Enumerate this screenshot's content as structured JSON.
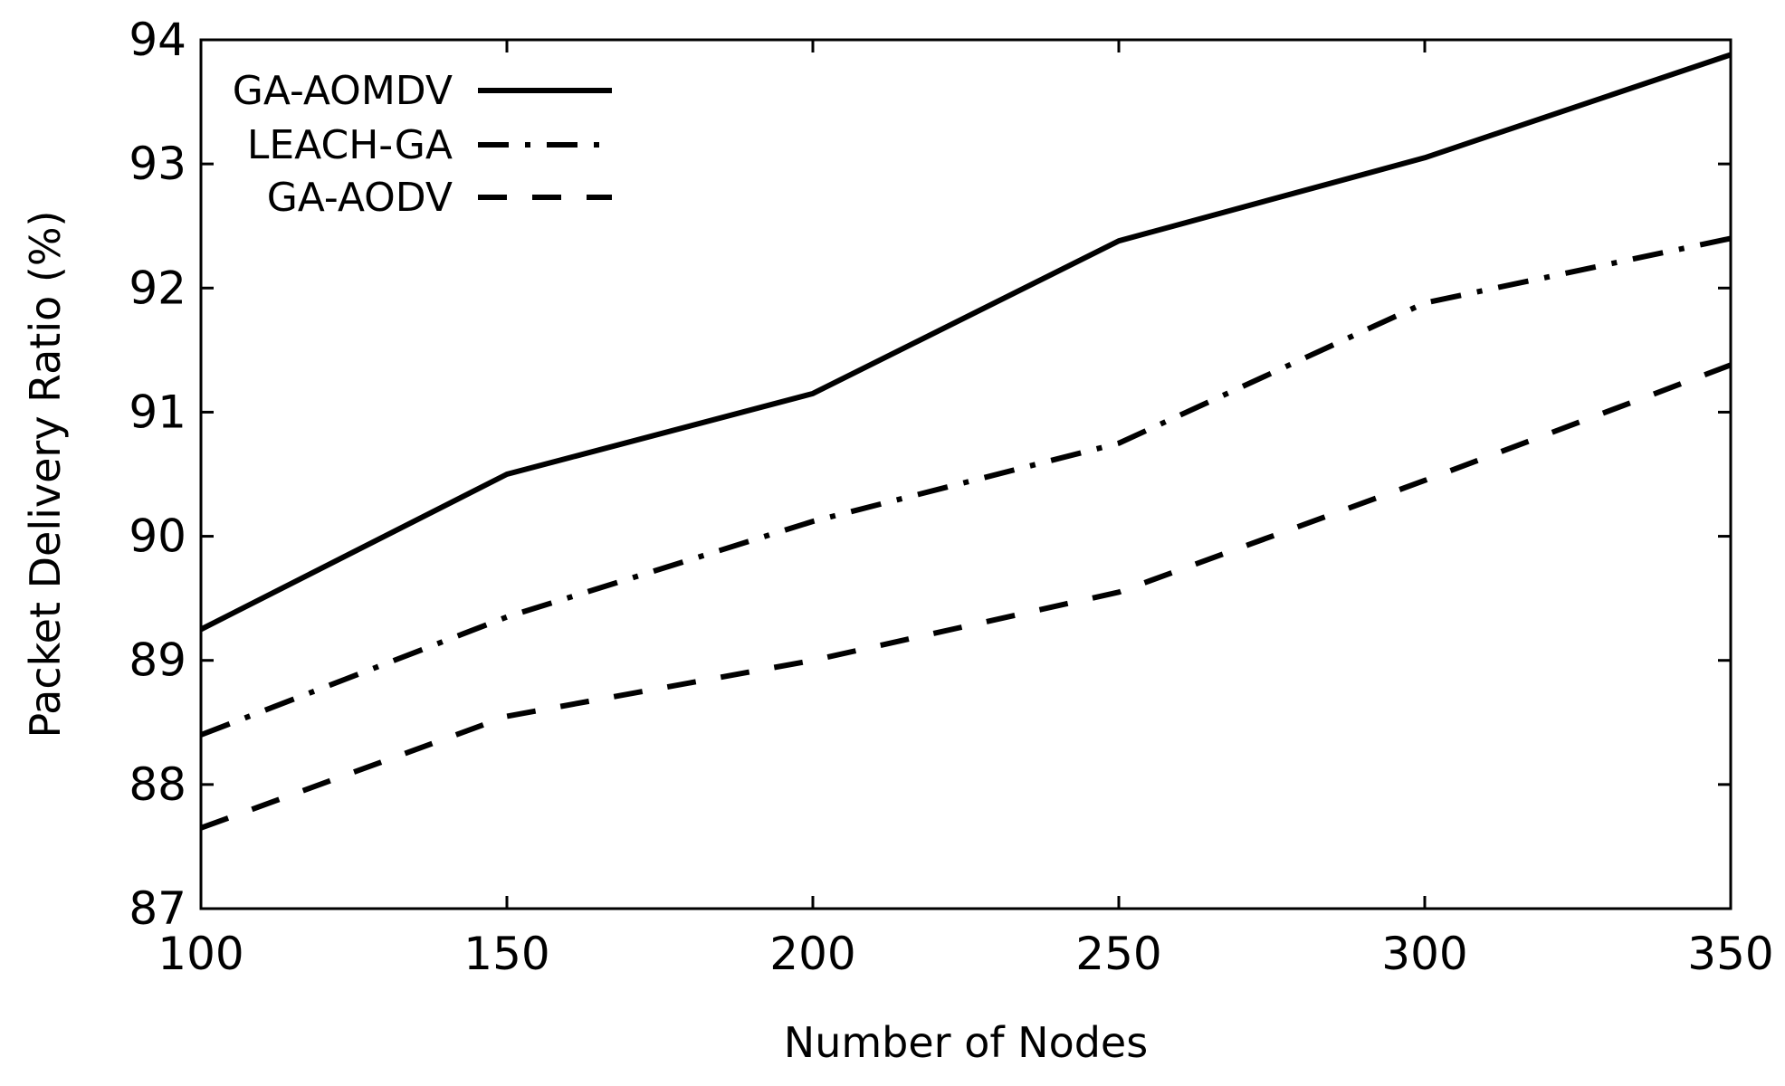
{
  "chart_data": {
    "type": "line",
    "title": "",
    "xlabel": "Number of Nodes",
    "ylabel": "Packet Delivery Ratio (%)",
    "xlim": [
      100,
      350
    ],
    "ylim": [
      87,
      94
    ],
    "x_ticks": [
      100,
      150,
      200,
      250,
      300,
      350
    ],
    "y_ticks": [
      87,
      88,
      89,
      90,
      91,
      92,
      93,
      94
    ],
    "grid": false,
    "legend_position": "top-left",
    "x": [
      100,
      150,
      200,
      250,
      300,
      350
    ],
    "series": [
      {
        "name": "GA-AOMDV",
        "style": "solid",
        "values": [
          89.25,
          90.5,
          91.15,
          92.38,
          93.05,
          93.88
        ]
      },
      {
        "name": "LEACH-GA",
        "style": "dash-dot",
        "values": [
          88.4,
          89.35,
          90.12,
          90.75,
          91.88,
          92.4
        ]
      },
      {
        "name": "GA-AODV",
        "style": "dashed",
        "values": [
          87.65,
          88.55,
          89.0,
          89.55,
          90.45,
          91.38
        ]
      }
    ],
    "colors": {
      "line": "#000000",
      "axis": "#000000",
      "background": "#ffffff"
    }
  }
}
